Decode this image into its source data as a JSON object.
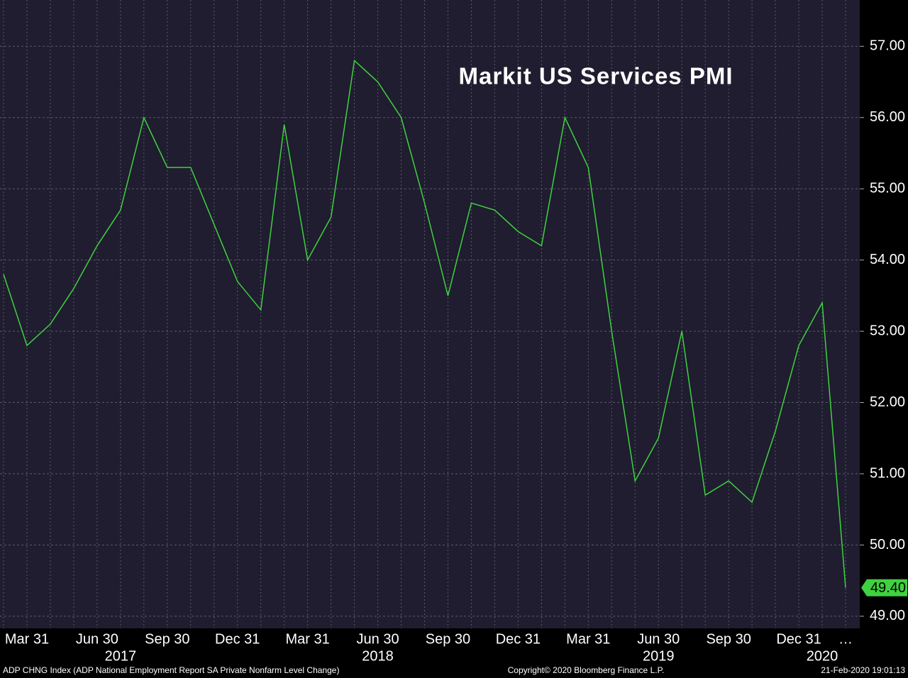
{
  "chart_data": {
    "type": "line",
    "title": "Markit US Services PMI",
    "categories": [
      null,
      "Mar 31",
      null,
      null,
      "Jun 30",
      null,
      null,
      "Sep 30",
      null,
      null,
      "Dec 31",
      null,
      null,
      "Mar 31",
      null,
      null,
      "Jun 30",
      null,
      null,
      "Sep 30",
      null,
      null,
      "Dec 31",
      null,
      null,
      "Mar 31",
      null,
      null,
      "Jun 30",
      null,
      null,
      "Sep 30",
      null,
      null,
      "Dec 31",
      null,
      "…"
    ],
    "year_labels": [
      null,
      null,
      null,
      null,
      null,
      "2017",
      null,
      null,
      null,
      null,
      null,
      null,
      null,
      null,
      null,
      null,
      "2018",
      null,
      null,
      null,
      null,
      null,
      null,
      null,
      null,
      null,
      null,
      null,
      "2019",
      null,
      null,
      null,
      null,
      null,
      null,
      "2020",
      null
    ],
    "series": [
      {
        "name": "Markit US Services PMI",
        "color": "#3fd13f",
        "values": [
          53.8,
          52.8,
          53.1,
          53.6,
          54.2,
          54.7,
          56.0,
          55.3,
          55.3,
          54.5,
          53.7,
          53.3,
          55.9,
          54.0,
          54.6,
          56.8,
          56.5,
          56.0,
          54.8,
          53.5,
          54.8,
          54.7,
          54.4,
          54.2,
          56.0,
          55.3,
          53.0,
          50.9,
          51.5,
          53.0,
          50.7,
          50.9,
          50.6,
          51.6,
          52.8,
          53.4,
          49.4
        ],
        "value_labels": [
          null,
          null,
          null,
          null,
          null,
          null,
          null,
          null,
          null,
          null,
          null,
          null,
          null,
          null,
          null,
          null,
          null,
          null,
          null,
          null,
          null,
          null,
          null,
          null,
          null,
          null,
          null,
          null,
          null,
          null,
          null,
          null,
          null,
          null,
          null,
          null,
          "49.40"
        ]
      }
    ],
    "ylim": [
      48.83,
      57.65
    ],
    "yticks": [
      {
        "value": 49,
        "label": "49.00"
      },
      {
        "value": 50,
        "label": "50.00"
      },
      {
        "value": 51,
        "label": "51.00"
      },
      {
        "value": 52,
        "label": "52.00"
      },
      {
        "value": 53,
        "label": "53.00"
      },
      {
        "value": 54,
        "label": "54.00"
      },
      {
        "value": 55,
        "label": "55.00"
      },
      {
        "value": 56,
        "label": "56.00"
      },
      {
        "value": 57,
        "label": "57.00"
      }
    ],
    "grid": true,
    "footer_left": "ADP CHNG Index (ADP National Employment Report SA Private Nonfarm Level Change)",
    "footer_center": "Copyright© 2020 Bloomberg Finance L.P.",
    "footer_right": "21-Feb-2020 19:01:13"
  }
}
